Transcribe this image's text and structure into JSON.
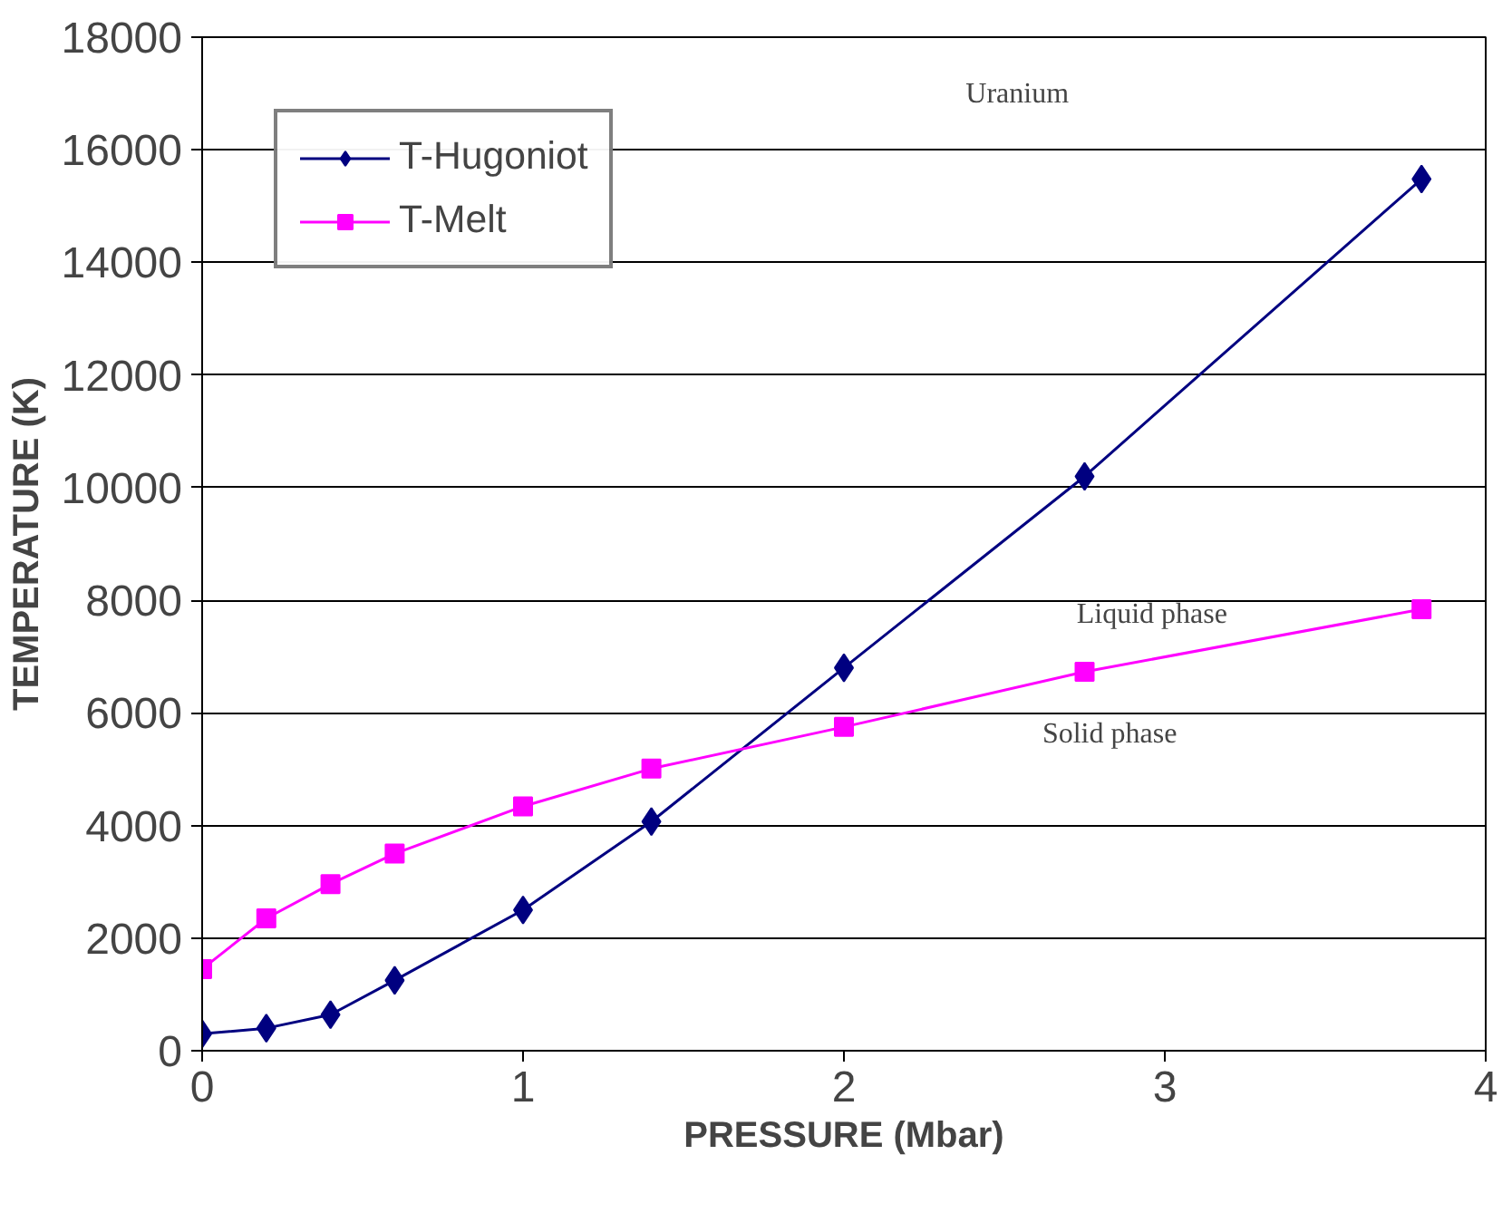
{
  "chart_data": {
    "type": "line",
    "xlabel": "PRESSURE (Mbar)",
    "ylabel": "TEMPERATURE (K)",
    "xlim": [
      0,
      4
    ],
    "xticks": [
      0,
      1,
      2,
      3,
      4
    ],
    "ylim": [
      0,
      18000
    ],
    "yticks": [
      0,
      2000,
      4000,
      6000,
      8000,
      10000,
      12000,
      14000,
      16000,
      18000
    ],
    "grid": "y",
    "legend": "top left",
    "line_style": "solid",
    "series": [
      {
        "name": "T-Hugoniot",
        "color": "#000080",
        "marker": "diamond",
        "x": [
          0,
          0.2,
          0.4,
          0.6,
          1.0,
          1.4,
          2.0,
          2.75,
          3.8
        ],
        "values": [
          300,
          400,
          640,
          1250,
          2500,
          4070,
          6800,
          10200,
          15480
        ]
      },
      {
        "name": "T-Melt",
        "color": "#ff00ff",
        "marker": "square",
        "x": [
          0,
          0.2,
          0.4,
          0.6,
          1.0,
          1.4,
          2.0,
          2.75,
          3.8
        ],
        "values": [
          1450,
          2350,
          2960,
          3500,
          4340,
          5010,
          5750,
          6730,
          7840
        ]
      }
    ],
    "annotations": [
      "Uranium",
      "Liquid phase",
      "Solid phase"
    ]
  }
}
